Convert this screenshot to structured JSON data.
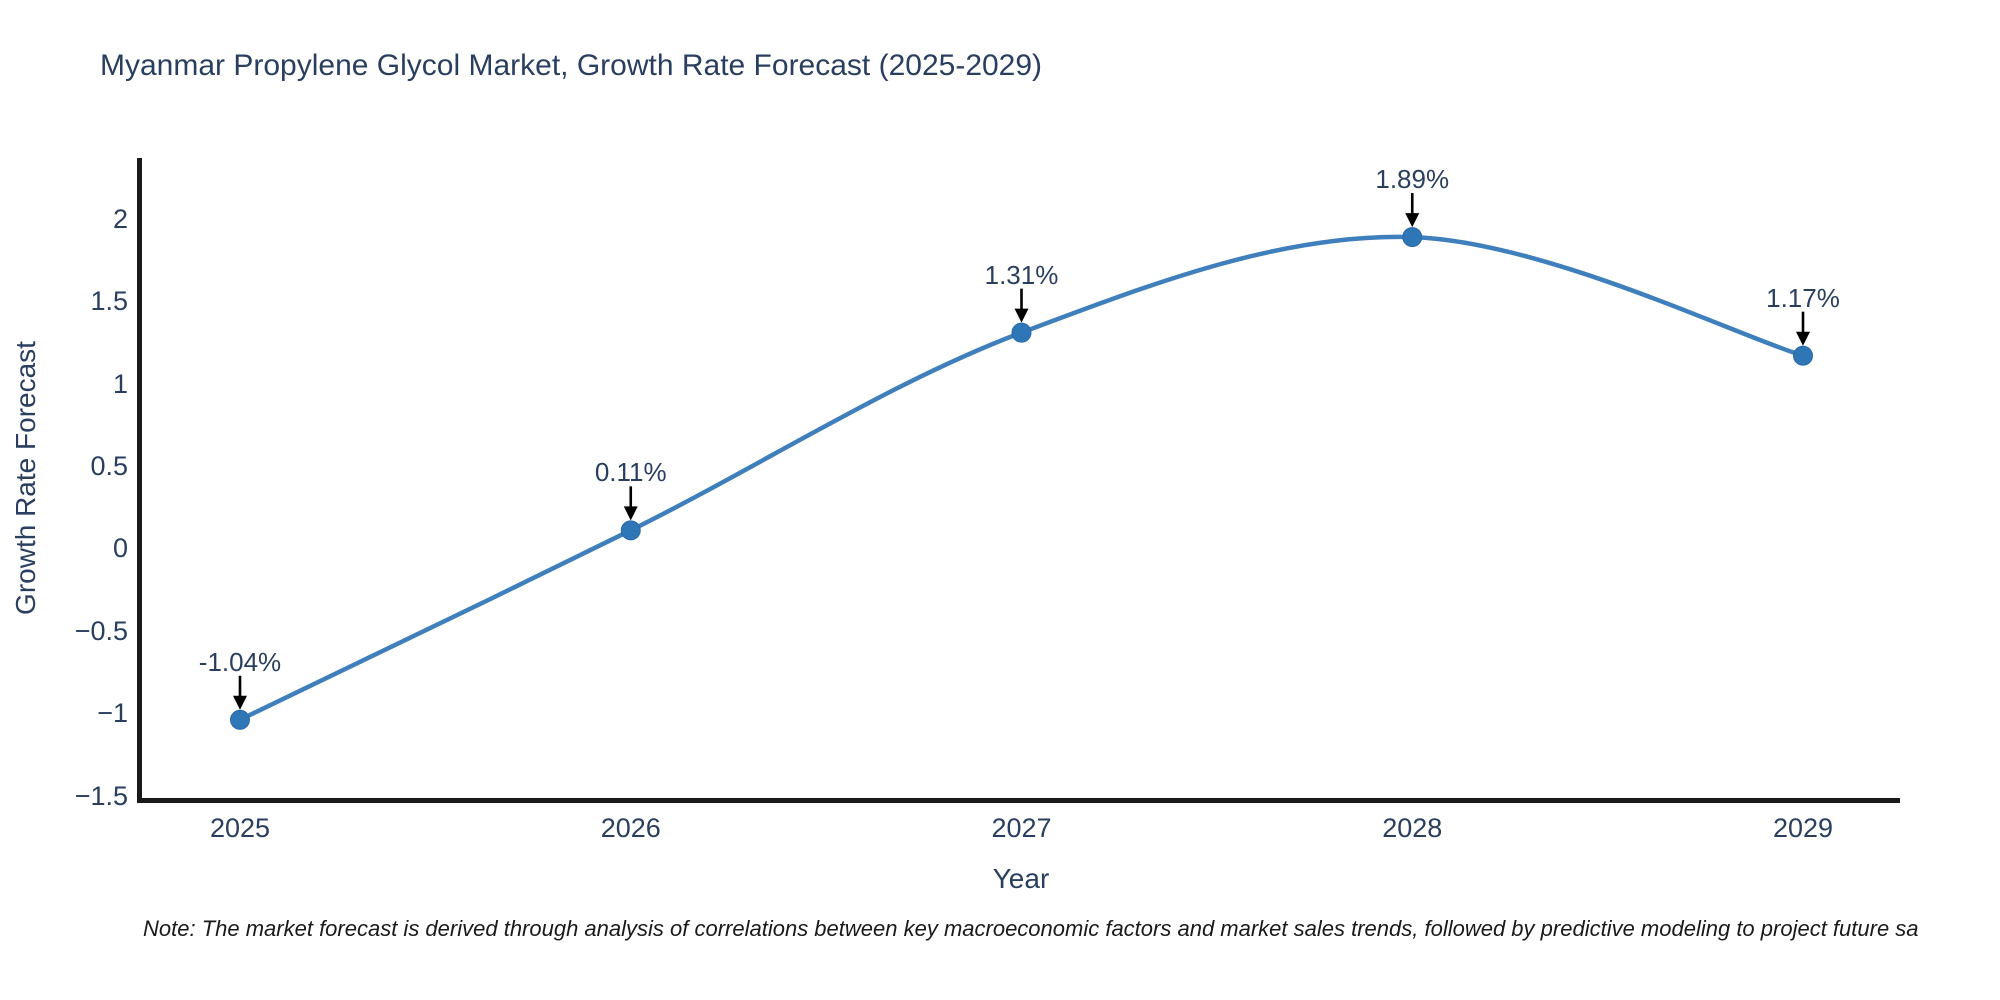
{
  "note": {
    "text": "Note: The market forecast is derived through analysis of correlations between key macroeconomic factors and market sales trends, followed by predictive modeling to project future sa"
  },
  "chart_data": {
    "type": "line",
    "title": "Myanmar Propylene Glycol Market, Growth Rate Forecast (2025-2029)",
    "xlabel": "Year",
    "ylabel": "Growth Rate Forecast",
    "categories": [
      "2025",
      "2026",
      "2027",
      "2028",
      "2029"
    ],
    "values": [
      -1.04,
      0.11,
      1.31,
      1.89,
      1.17
    ],
    "labels": [
      "-1.04%",
      "0.11%",
      "1.31%",
      "1.89%",
      "1.17%"
    ],
    "series": [
      {
        "name": "Growth Rate Forecast",
        "values": [
          -1.04,
          0.11,
          1.31,
          1.89,
          1.17
        ]
      }
    ],
    "yticks": [
      {
        "value": 2,
        "label": "2"
      },
      {
        "value": 1.5,
        "label": "1.5"
      },
      {
        "value": 1,
        "label": "1"
      },
      {
        "value": 0.5,
        "label": "0.5"
      },
      {
        "value": 0,
        "label": "0"
      },
      {
        "value": -0.5,
        "label": "−0.5"
      },
      {
        "value": -1,
        "label": "−1"
      },
      {
        "value": -1.5,
        "label": "−1.5"
      }
    ],
    "ylim": [
      -1.53,
      2.37
    ],
    "grid": false,
    "legend": "none",
    "line_shape": "spline",
    "marker_style": "circle",
    "annotation_arrows": true,
    "colors": {
      "line": "#3f80bc",
      "marker": "#2e76b6",
      "axis": "#1a1a1a",
      "arrow": "#000000",
      "text": "#2a3f5f"
    }
  }
}
